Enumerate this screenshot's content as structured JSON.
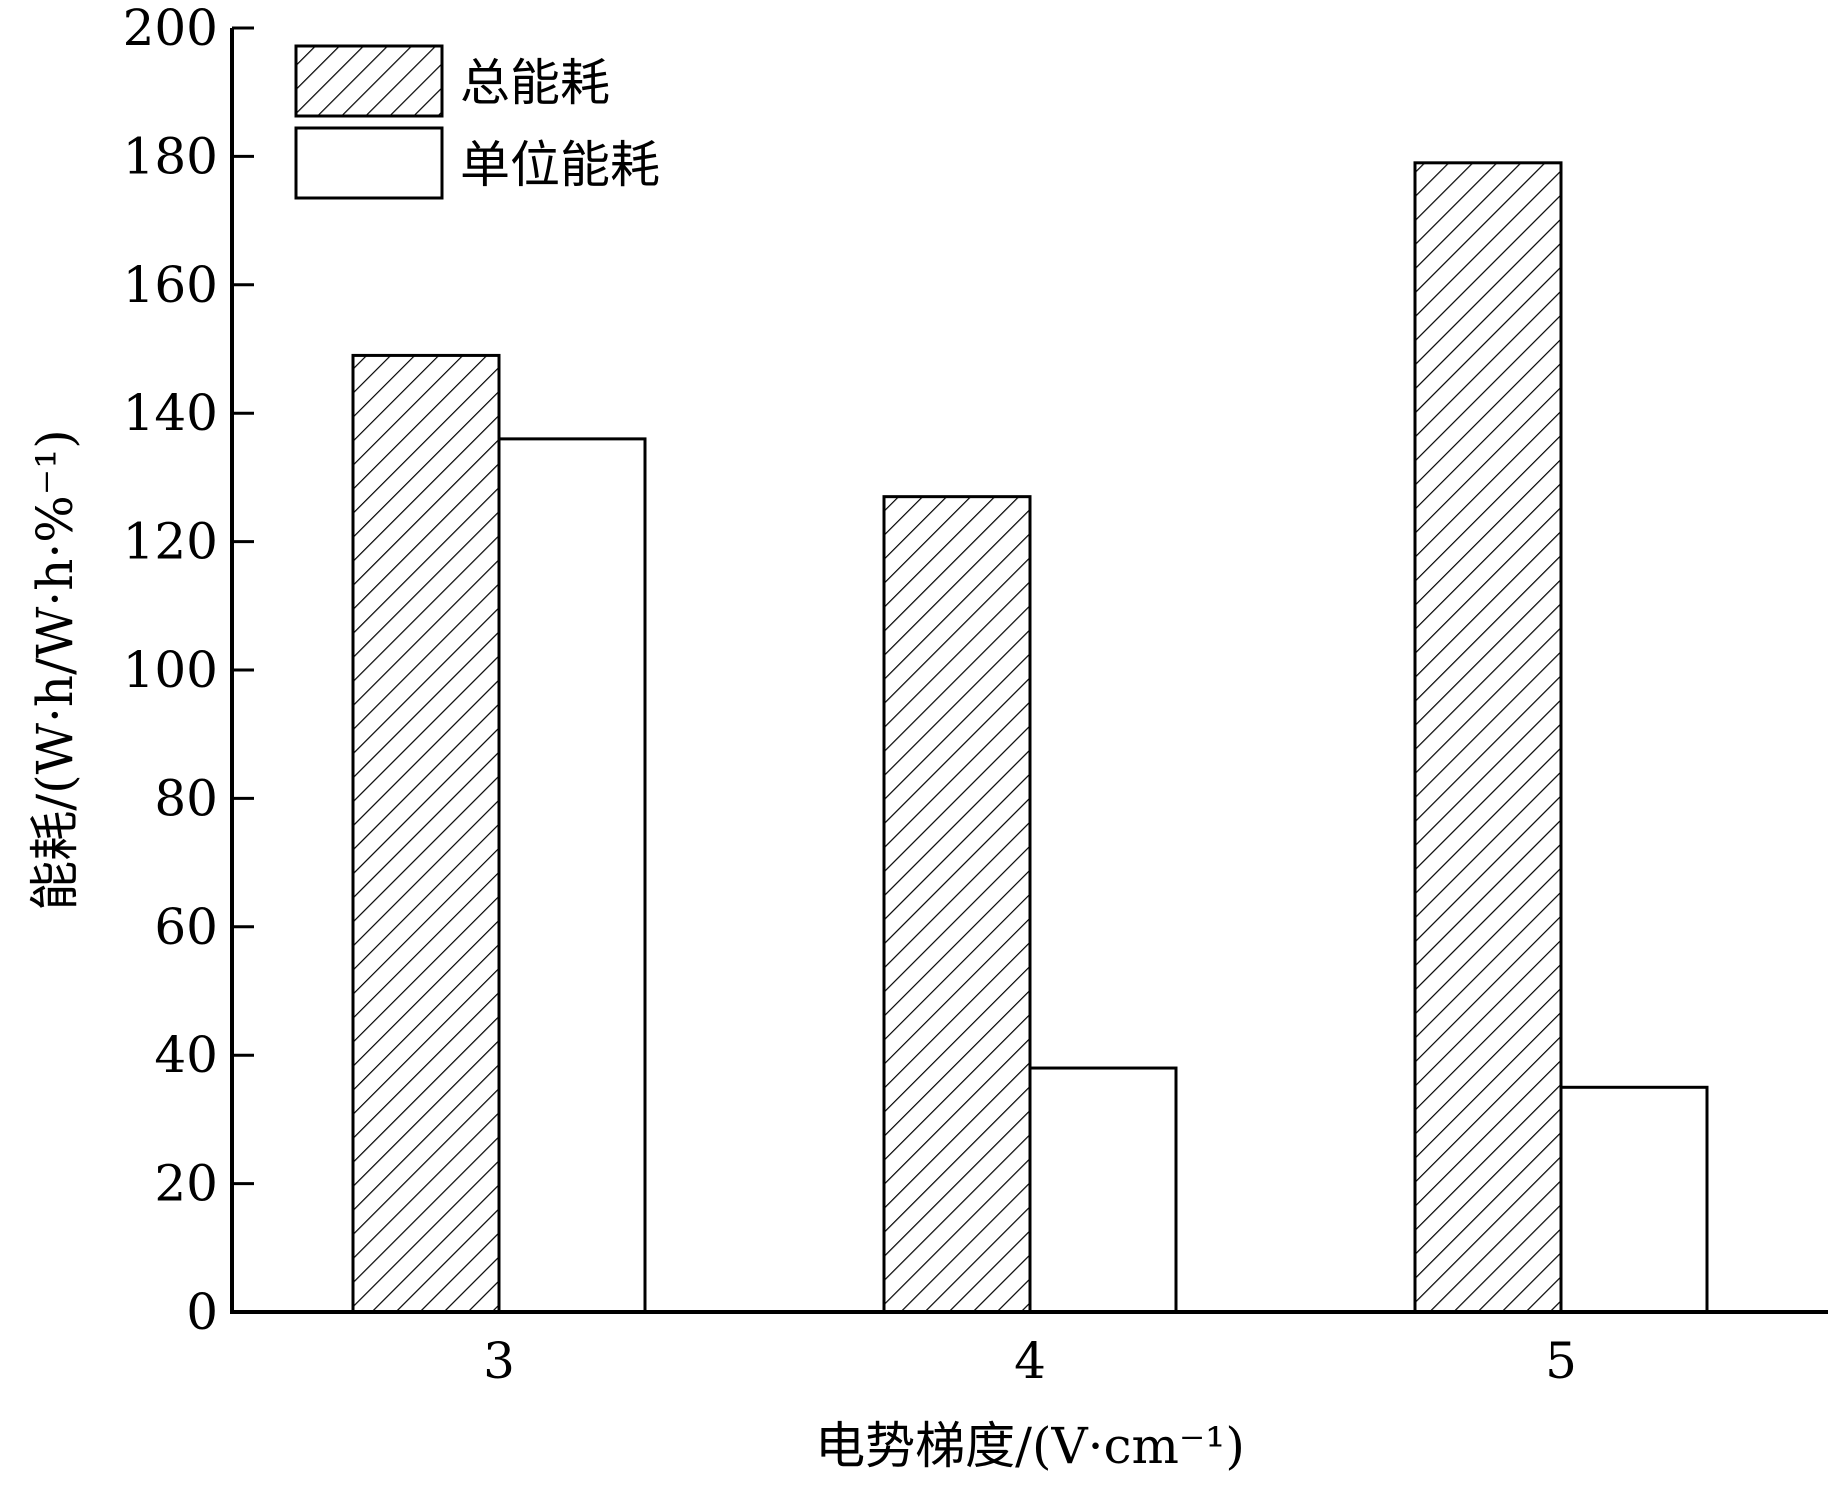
{
  "chart_data": {
    "type": "bar",
    "categories": [
      "3",
      "4",
      "5"
    ],
    "series": [
      {
        "name": "总能耗",
        "values": [
          149,
          127,
          179
        ],
        "pattern": "hatch"
      },
      {
        "name": "单位能耗",
        "values": [
          136,
          38,
          35
        ],
        "pattern": "plain"
      }
    ],
    "title": "",
    "xlabel": "电势梯度/(V·cm⁻¹)",
    "ylabel": "能耗/(W·h/W·h·%⁻¹)",
    "ylim": [
      0,
      200
    ],
    "yticks": [
      "0",
      "20",
      "40",
      "60",
      "80",
      "100",
      "120",
      "140",
      "160",
      "180",
      "200"
    ],
    "grid": false,
    "legend_position": "top-left",
    "colors": {
      "stroke": "#000000",
      "fill": "#ffffff"
    }
  }
}
